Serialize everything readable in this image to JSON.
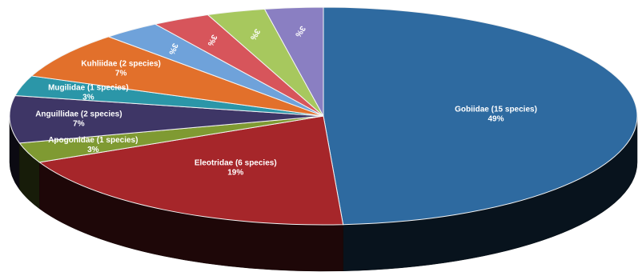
{
  "chart_data": {
    "type": "pie",
    "style": "3d",
    "slices": [
      {
        "name": "Gobiidae (15 species)",
        "percent_label": "49%",
        "value": 49,
        "color": "#2e6aa0"
      },
      {
        "name": "Eleotridae (6 species)",
        "percent_label": "19%",
        "value": 19,
        "color": "#a6262a"
      },
      {
        "name": "Apogonidae (1 species)",
        "percent_label": "3%",
        "value": 3,
        "color": "#7f9a32"
      },
      {
        "name": "Anguillidae (2 species)",
        "percent_label": "7%",
        "value": 7,
        "color": "#3e3666"
      },
      {
        "name": "Mugilidae (1 species)",
        "percent_label": "3%",
        "value": 3,
        "color": "#2b96a8"
      },
      {
        "name": "Kuhliidae (2 species)",
        "percent_label": "7%",
        "value": 7,
        "color": "#e2702b"
      },
      {
        "name": "",
        "percent_label": "3%",
        "value": 3,
        "color": "#6fa2da"
      },
      {
        "name": "",
        "percent_label": "3%",
        "value": 3,
        "color": "#d7555b"
      },
      {
        "name": "",
        "percent_label": "3%",
        "value": 3,
        "color": "#a7c85e"
      },
      {
        "name": "",
        "percent_label": "3%",
        "value": 3,
        "color": "#8a7fc2"
      }
    ]
  }
}
